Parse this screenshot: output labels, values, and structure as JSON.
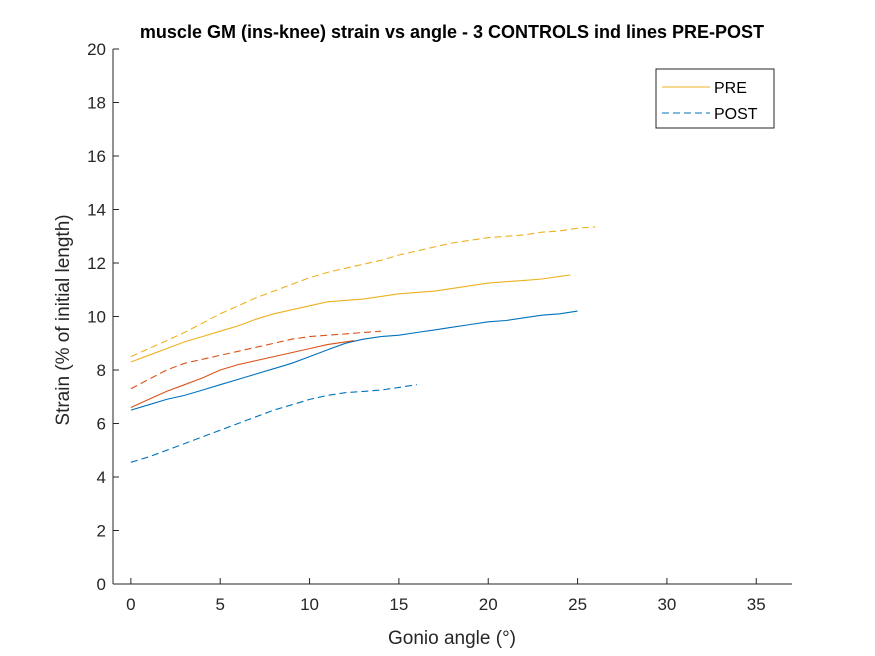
{
  "chart_data": {
    "type": "line",
    "title": "muscle GM (ins-knee) strain vs angle - 3 CONTROLS ind lines PRE-POST",
    "xlabel": "Gonio angle (°)",
    "ylabel": "Strain (% of initial length)",
    "xlim": [
      -1,
      37
    ],
    "ylim": [
      0,
      20
    ],
    "xticks": [
      0,
      5,
      10,
      15,
      20,
      25,
      30,
      35
    ],
    "yticks": [
      0,
      2,
      4,
      6,
      8,
      10,
      12,
      14,
      16,
      18,
      20
    ],
    "grid": false,
    "legend_position": "top-right",
    "legend": [
      {
        "label": "PRE",
        "style": "solid",
        "color": "#EDB120"
      },
      {
        "label": "POST",
        "style": "dashed",
        "color": "#0072BD"
      }
    ],
    "series": [
      {
        "color": "#EDB120",
        "style": "solid",
        "x": [
          0,
          1,
          2,
          3,
          4,
          5,
          6,
          7,
          8,
          9,
          10,
          11,
          12,
          13,
          14,
          15,
          16,
          17,
          18,
          19,
          20,
          21,
          22,
          23,
          24,
          24.6
        ],
        "y": [
          8.3,
          8.55,
          8.8,
          9.05,
          9.25,
          9.45,
          9.65,
          9.9,
          10.1,
          10.25,
          10.4,
          10.55,
          10.6,
          10.65,
          10.75,
          10.85,
          10.9,
          10.95,
          11.05,
          11.15,
          11.25,
          11.3,
          11.35,
          11.4,
          11.5,
          11.55
        ]
      },
      {
        "color": "#EDB120",
        "style": "dashed",
        "x": [
          0,
          1,
          2,
          3,
          4,
          5,
          6,
          7,
          8,
          9,
          10,
          11,
          12,
          13,
          14,
          15,
          16,
          17,
          18,
          19,
          20,
          21,
          22,
          23,
          24,
          25,
          26
        ],
        "y": [
          8.5,
          8.8,
          9.1,
          9.4,
          9.75,
          10.1,
          10.4,
          10.7,
          10.95,
          11.2,
          11.45,
          11.65,
          11.8,
          11.95,
          12.1,
          12.3,
          12.45,
          12.6,
          12.75,
          12.85,
          12.95,
          13.0,
          13.05,
          13.15,
          13.2,
          13.3,
          13.35
        ]
      },
      {
        "color": "#0072BD",
        "style": "solid",
        "x": [
          0,
          1,
          2,
          3,
          4,
          5,
          6,
          7,
          8,
          9,
          10,
          11,
          12,
          13,
          14,
          15,
          16,
          17,
          18,
          19,
          20,
          21,
          22,
          23,
          24,
          25
        ],
        "y": [
          6.5,
          6.7,
          6.9,
          7.05,
          7.25,
          7.45,
          7.65,
          7.85,
          8.05,
          8.25,
          8.5,
          8.75,
          9.0,
          9.15,
          9.25,
          9.3,
          9.4,
          9.5,
          9.6,
          9.7,
          9.8,
          9.85,
          9.95,
          10.05,
          10.1,
          10.2
        ]
      },
      {
        "color": "#0072BD",
        "style": "dashed",
        "x": [
          0,
          1,
          2,
          3,
          4,
          5,
          6,
          7,
          8,
          9,
          10,
          11,
          12,
          13,
          14,
          15,
          16
        ],
        "y": [
          4.55,
          4.75,
          5.0,
          5.25,
          5.5,
          5.75,
          6.0,
          6.25,
          6.5,
          6.7,
          6.9,
          7.05,
          7.15,
          7.2,
          7.25,
          7.35,
          7.45
        ]
      },
      {
        "color": "#D95319",
        "style": "solid",
        "x": [
          0,
          1,
          2,
          3,
          4,
          5,
          6,
          7,
          8,
          9,
          10,
          11,
          12,
          12.5
        ],
        "y": [
          6.6,
          6.9,
          7.2,
          7.45,
          7.7,
          8.0,
          8.2,
          8.35,
          8.5,
          8.65,
          8.8,
          8.95,
          9.05,
          9.1
        ]
      },
      {
        "color": "#D95319",
        "style": "dashed",
        "x": [
          0,
          1,
          2,
          3,
          4,
          5,
          6,
          7,
          8,
          9,
          10,
          11,
          12,
          13,
          14
        ],
        "y": [
          7.3,
          7.65,
          8.0,
          8.25,
          8.4,
          8.55,
          8.7,
          8.85,
          9.0,
          9.15,
          9.25,
          9.3,
          9.35,
          9.4,
          9.45
        ]
      }
    ]
  }
}
